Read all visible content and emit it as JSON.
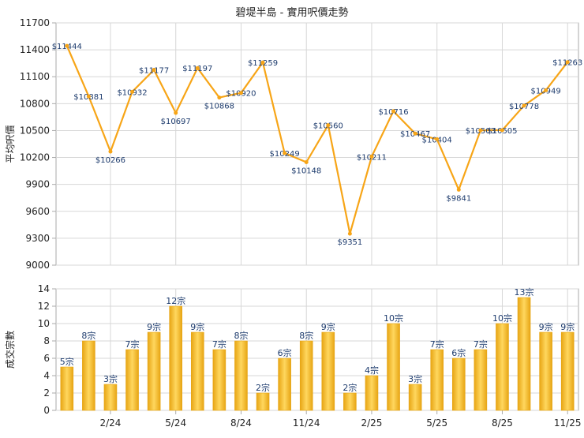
{
  "title": "碧堤半島 - 實用呎價走勢",
  "colors": {
    "line": "#f7a517",
    "bar_light": "#ffd75e",
    "bar_dark": "#e7a514",
    "grid": "#d7d7d7",
    "frame": "#aaaaaa",
    "text": "#222222",
    "label": "#1d3b6d"
  },
  "chart_data": [
    {
      "type": "line",
      "ylabel": "平均呎價",
      "ylim": [
        9000,
        11700
      ],
      "yticks": [
        9000,
        9300,
        9600,
        9900,
        10200,
        10500,
        10800,
        11100,
        11400,
        11700
      ],
      "values": [
        11444,
        10881,
        10266,
        10932,
        11177,
        10697,
        11197,
        10868,
        10920,
        11259,
        10249,
        10148,
        10560,
        9351,
        10211,
        10716,
        10467,
        10404,
        9841,
        10503,
        10505,
        10778,
        10949,
        11263
      ],
      "data_labels": [
        "$11444",
        "$10881",
        "$10266",
        "$10932",
        "$11177",
        "$10697",
        "$11197",
        "$10868",
        "$10920",
        "$11259",
        "$10249",
        "$10148",
        "$10560",
        "$9351",
        "$10211",
        "$10716",
        "$10467",
        "$10404",
        "$9841",
        "$10503",
        "$10505",
        "$10778",
        "$10949",
        "$11263"
      ]
    },
    {
      "type": "bar",
      "ylabel": "成交宗數",
      "ylim": [
        0,
        14
      ],
      "yticks": [
        0,
        2,
        4,
        6,
        8,
        10,
        12,
        14
      ],
      "values": [
        5,
        8,
        3,
        7,
        9,
        12,
        9,
        7,
        8,
        2,
        6,
        8,
        9,
        2,
        4,
        10,
        3,
        7,
        6,
        7,
        10,
        13,
        9,
        9
      ],
      "data_labels": [
        "5宗",
        "8宗",
        "3宗",
        "7宗",
        "9宗",
        "12宗",
        "9宗",
        "7宗",
        "8宗",
        "2宗",
        "6宗",
        "8宗",
        "9宗",
        "2宗",
        "4宗",
        "10宗",
        "3宗",
        "7宗",
        "6宗",
        "7宗",
        "10宗",
        "13宗",
        "9宗",
        "9宗"
      ],
      "x_tick_labels": [
        {
          "index": 2,
          "label": "2/24"
        },
        {
          "index": 5,
          "label": "5/24"
        },
        {
          "index": 8,
          "label": "8/24"
        },
        {
          "index": 11,
          "label": "11/24"
        },
        {
          "index": 14,
          "label": "2/25"
        },
        {
          "index": 17,
          "label": "5/25"
        },
        {
          "index": 20,
          "label": "8/25"
        },
        {
          "index": 23,
          "label": "11/25"
        }
      ]
    }
  ]
}
